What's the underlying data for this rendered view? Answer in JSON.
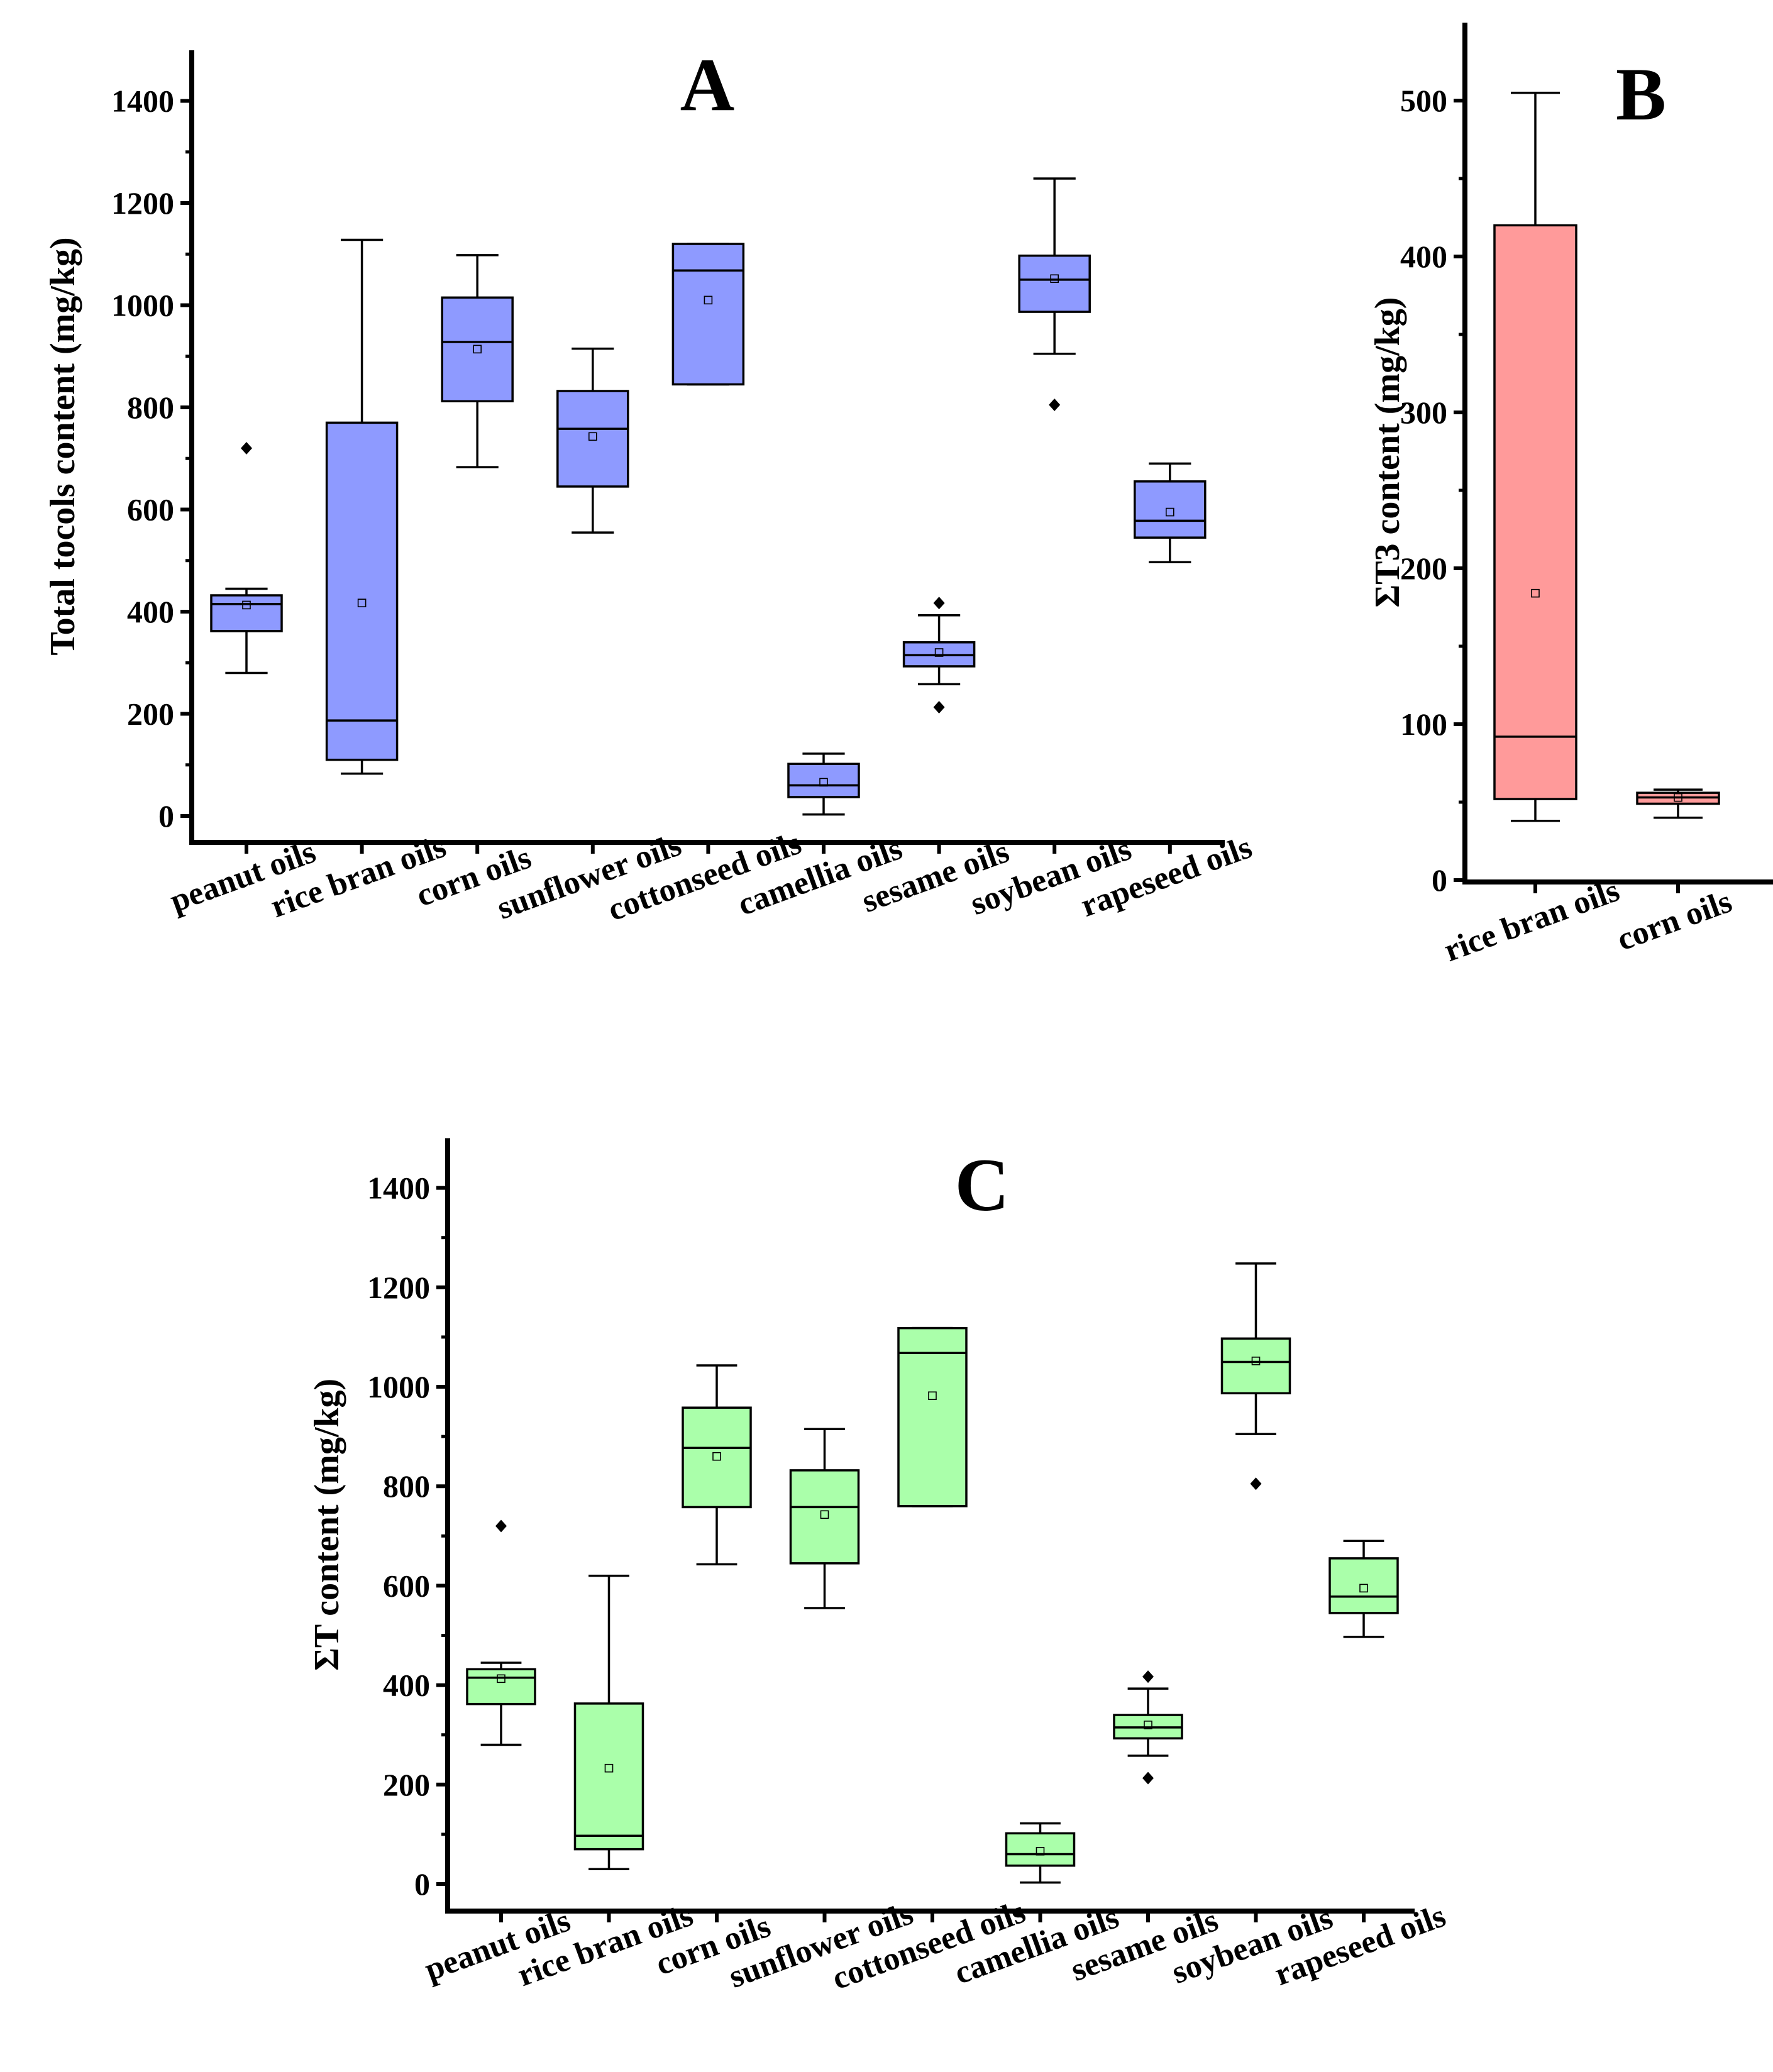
{
  "chart_data": [
    {
      "panel": "A",
      "type": "box",
      "title": "A",
      "xlabel": "",
      "ylabel": "Total tocols content (mg/kg)",
      "ylim": [
        -50,
        1500
      ],
      "yticks": [
        0,
        200,
        400,
        600,
        800,
        1000,
        1200,
        1400
      ],
      "ytick_labels": [
        "0",
        "200",
        "400",
        "600",
        "800",
        "1000",
        "1200",
        "1400"
      ],
      "color": "#8e9aff",
      "categories": [
        "peanut oils",
        "rice bran oils",
        "corn oils",
        "sunflower oils",
        "cottonseed oils",
        "camellia oils",
        "sesame oils",
        "soybean oils",
        "rapeseed oils"
      ],
      "boxes": [
        {
          "whisker_low": 280,
          "q1": 362,
          "median": 415,
          "q3": 432,
          "whisker_high": 445,
          "mean": 413,
          "outliers": [
            720
          ]
        },
        {
          "whisker_low": 83,
          "q1": 110,
          "median": 187,
          "q3": 770,
          "whisker_high": 1128,
          "mean": 417,
          "outliers": []
        },
        {
          "whisker_low": 683,
          "q1": 812,
          "median": 928,
          "q3": 1015,
          "whisker_high": 1098,
          "mean": 914,
          "outliers": []
        },
        {
          "whisker_low": 555,
          "q1": 645,
          "median": 758,
          "q3": 832,
          "whisker_high": 915,
          "mean": 743,
          "outliers": []
        },
        {
          "whisker_low": 845,
          "q1": 845,
          "median": 1068,
          "q3": 1120,
          "whisker_high": 1120,
          "mean": 1010,
          "outliers": []
        },
        {
          "whisker_low": 3,
          "q1": 37,
          "median": 60,
          "q3": 102,
          "whisker_high": 122,
          "mean": 66,
          "outliers": []
        },
        {
          "whisker_low": 258,
          "q1": 293,
          "median": 315,
          "q3": 340,
          "whisker_high": 393,
          "mean": 320,
          "outliers": [
            213,
            417
          ]
        },
        {
          "whisker_low": 905,
          "q1": 987,
          "median": 1050,
          "q3": 1097,
          "whisker_high": 1248,
          "mean": 1052,
          "outliers": [
            805
          ]
        },
        {
          "whisker_low": 497,
          "q1": 545,
          "median": 578,
          "q3": 655,
          "whisker_high": 690,
          "mean": 595,
          "outliers": []
        }
      ]
    },
    {
      "panel": "B",
      "type": "box",
      "title": "B",
      "xlabel": "",
      "ylabel": "ΣT3 content (mg/kg)",
      "ylim": [
        0,
        550
      ],
      "yticks": [
        0,
        100,
        200,
        300,
        400,
        500
      ],
      "ytick_labels": [
        "0",
        "100",
        "200",
        "300",
        "400",
        "500"
      ],
      "color": "#ff9a9a",
      "categories": [
        "rice bran oils",
        "corn oils"
      ],
      "boxes": [
        {
          "whisker_low": 38,
          "q1": 52,
          "median": 92,
          "q3": 420,
          "whisker_high": 505,
          "mean": 184,
          "outliers": []
        },
        {
          "whisker_low": 40,
          "q1": 49,
          "median": 53,
          "q3": 56,
          "whisker_high": 58,
          "mean": 53,
          "outliers": []
        }
      ]
    },
    {
      "panel": "C",
      "type": "box",
      "title": "C",
      "xlabel": "",
      "ylabel": "ΣT content (mg/kg)",
      "ylim": [
        -50,
        1500
      ],
      "yticks": [
        0,
        200,
        400,
        600,
        800,
        1000,
        1200,
        1400
      ],
      "ytick_labels": [
        "0",
        "200",
        "400",
        "600",
        "800",
        "1000",
        "1200",
        "1400"
      ],
      "color": "#aaffaa",
      "categories": [
        "peanut oils",
        "rice bran oils",
        "corn oils",
        "sunflower oils",
        "cottonseed oils",
        "camellia oils",
        "sesame oils",
        "soybean oils",
        "rapeseed oils"
      ],
      "boxes": [
        {
          "whisker_low": 280,
          "q1": 362,
          "median": 415,
          "q3": 432,
          "whisker_high": 445,
          "mean": 413,
          "outliers": [
            720
          ]
        },
        {
          "whisker_low": 30,
          "q1": 70,
          "median": 97,
          "q3": 363,
          "whisker_high": 620,
          "mean": 233,
          "outliers": []
        },
        {
          "whisker_low": 643,
          "q1": 758,
          "median": 877,
          "q3": 958,
          "whisker_high": 1043,
          "mean": 860,
          "outliers": []
        },
        {
          "whisker_low": 555,
          "q1": 645,
          "median": 758,
          "q3": 832,
          "whisker_high": 915,
          "mean": 743,
          "outliers": []
        },
        {
          "whisker_low": 760,
          "q1": 760,
          "median": 1068,
          "q3": 1118,
          "whisker_high": 1118,
          "mean": 982,
          "outliers": []
        },
        {
          "whisker_low": 3,
          "q1": 37,
          "median": 60,
          "q3": 102,
          "whisker_high": 122,
          "mean": 66,
          "outliers": []
        },
        {
          "whisker_low": 258,
          "q1": 293,
          "median": 315,
          "q3": 340,
          "whisker_high": 393,
          "mean": 320,
          "outliers": [
            213,
            417
          ]
        },
        {
          "whisker_low": 905,
          "q1": 987,
          "median": 1050,
          "q3": 1097,
          "whisker_high": 1248,
          "mean": 1052,
          "outliers": [
            805
          ]
        },
        {
          "whisker_low": 497,
          "q1": 545,
          "median": 578,
          "q3": 655,
          "whisker_high": 690,
          "mean": 595,
          "outliers": []
        }
      ]
    }
  ]
}
